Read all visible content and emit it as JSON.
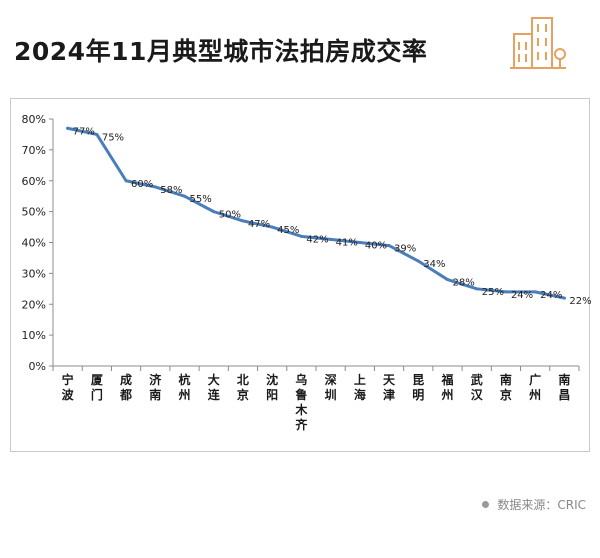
{
  "title": "2024年11月典型城市法拍房成交率",
  "source": "数据来源：CRIC",
  "colors": {
    "line": "#4a7ebb",
    "accent": "#e8a060"
  },
  "chart_data": {
    "type": "line",
    "title": "2024年11月典型城市法拍房成交率",
    "xlabel": "",
    "ylabel": "",
    "ylim": [
      0,
      80
    ],
    "yticks": [
      "0%",
      "10%",
      "20%",
      "30%",
      "40%",
      "50%",
      "60%",
      "70%",
      "80%"
    ],
    "grid": false,
    "categories": [
      "宁波",
      "厦门",
      "成都",
      "济南",
      "杭州",
      "大连",
      "北京",
      "沈阳",
      "乌鲁木齐",
      "深圳",
      "上海",
      "天津",
      "昆明",
      "福州",
      "武汉",
      "南京",
      "广州",
      "南昌"
    ],
    "series": [
      {
        "values": [
          77,
          75,
          60,
          58,
          55,
          50,
          47,
          45,
          42,
          41,
          40,
          39,
          34,
          28,
          25,
          24,
          24,
          22
        ],
        "labels": [
          "77%",
          "75%",
          "60%",
          "58%",
          "55%",
          "50%",
          "47%",
          "45%",
          "42%",
          "41%",
          "40%",
          "39%",
          "34%",
          "28%",
          "25%",
          "24%",
          "24%",
          "22%"
        ]
      }
    ]
  }
}
